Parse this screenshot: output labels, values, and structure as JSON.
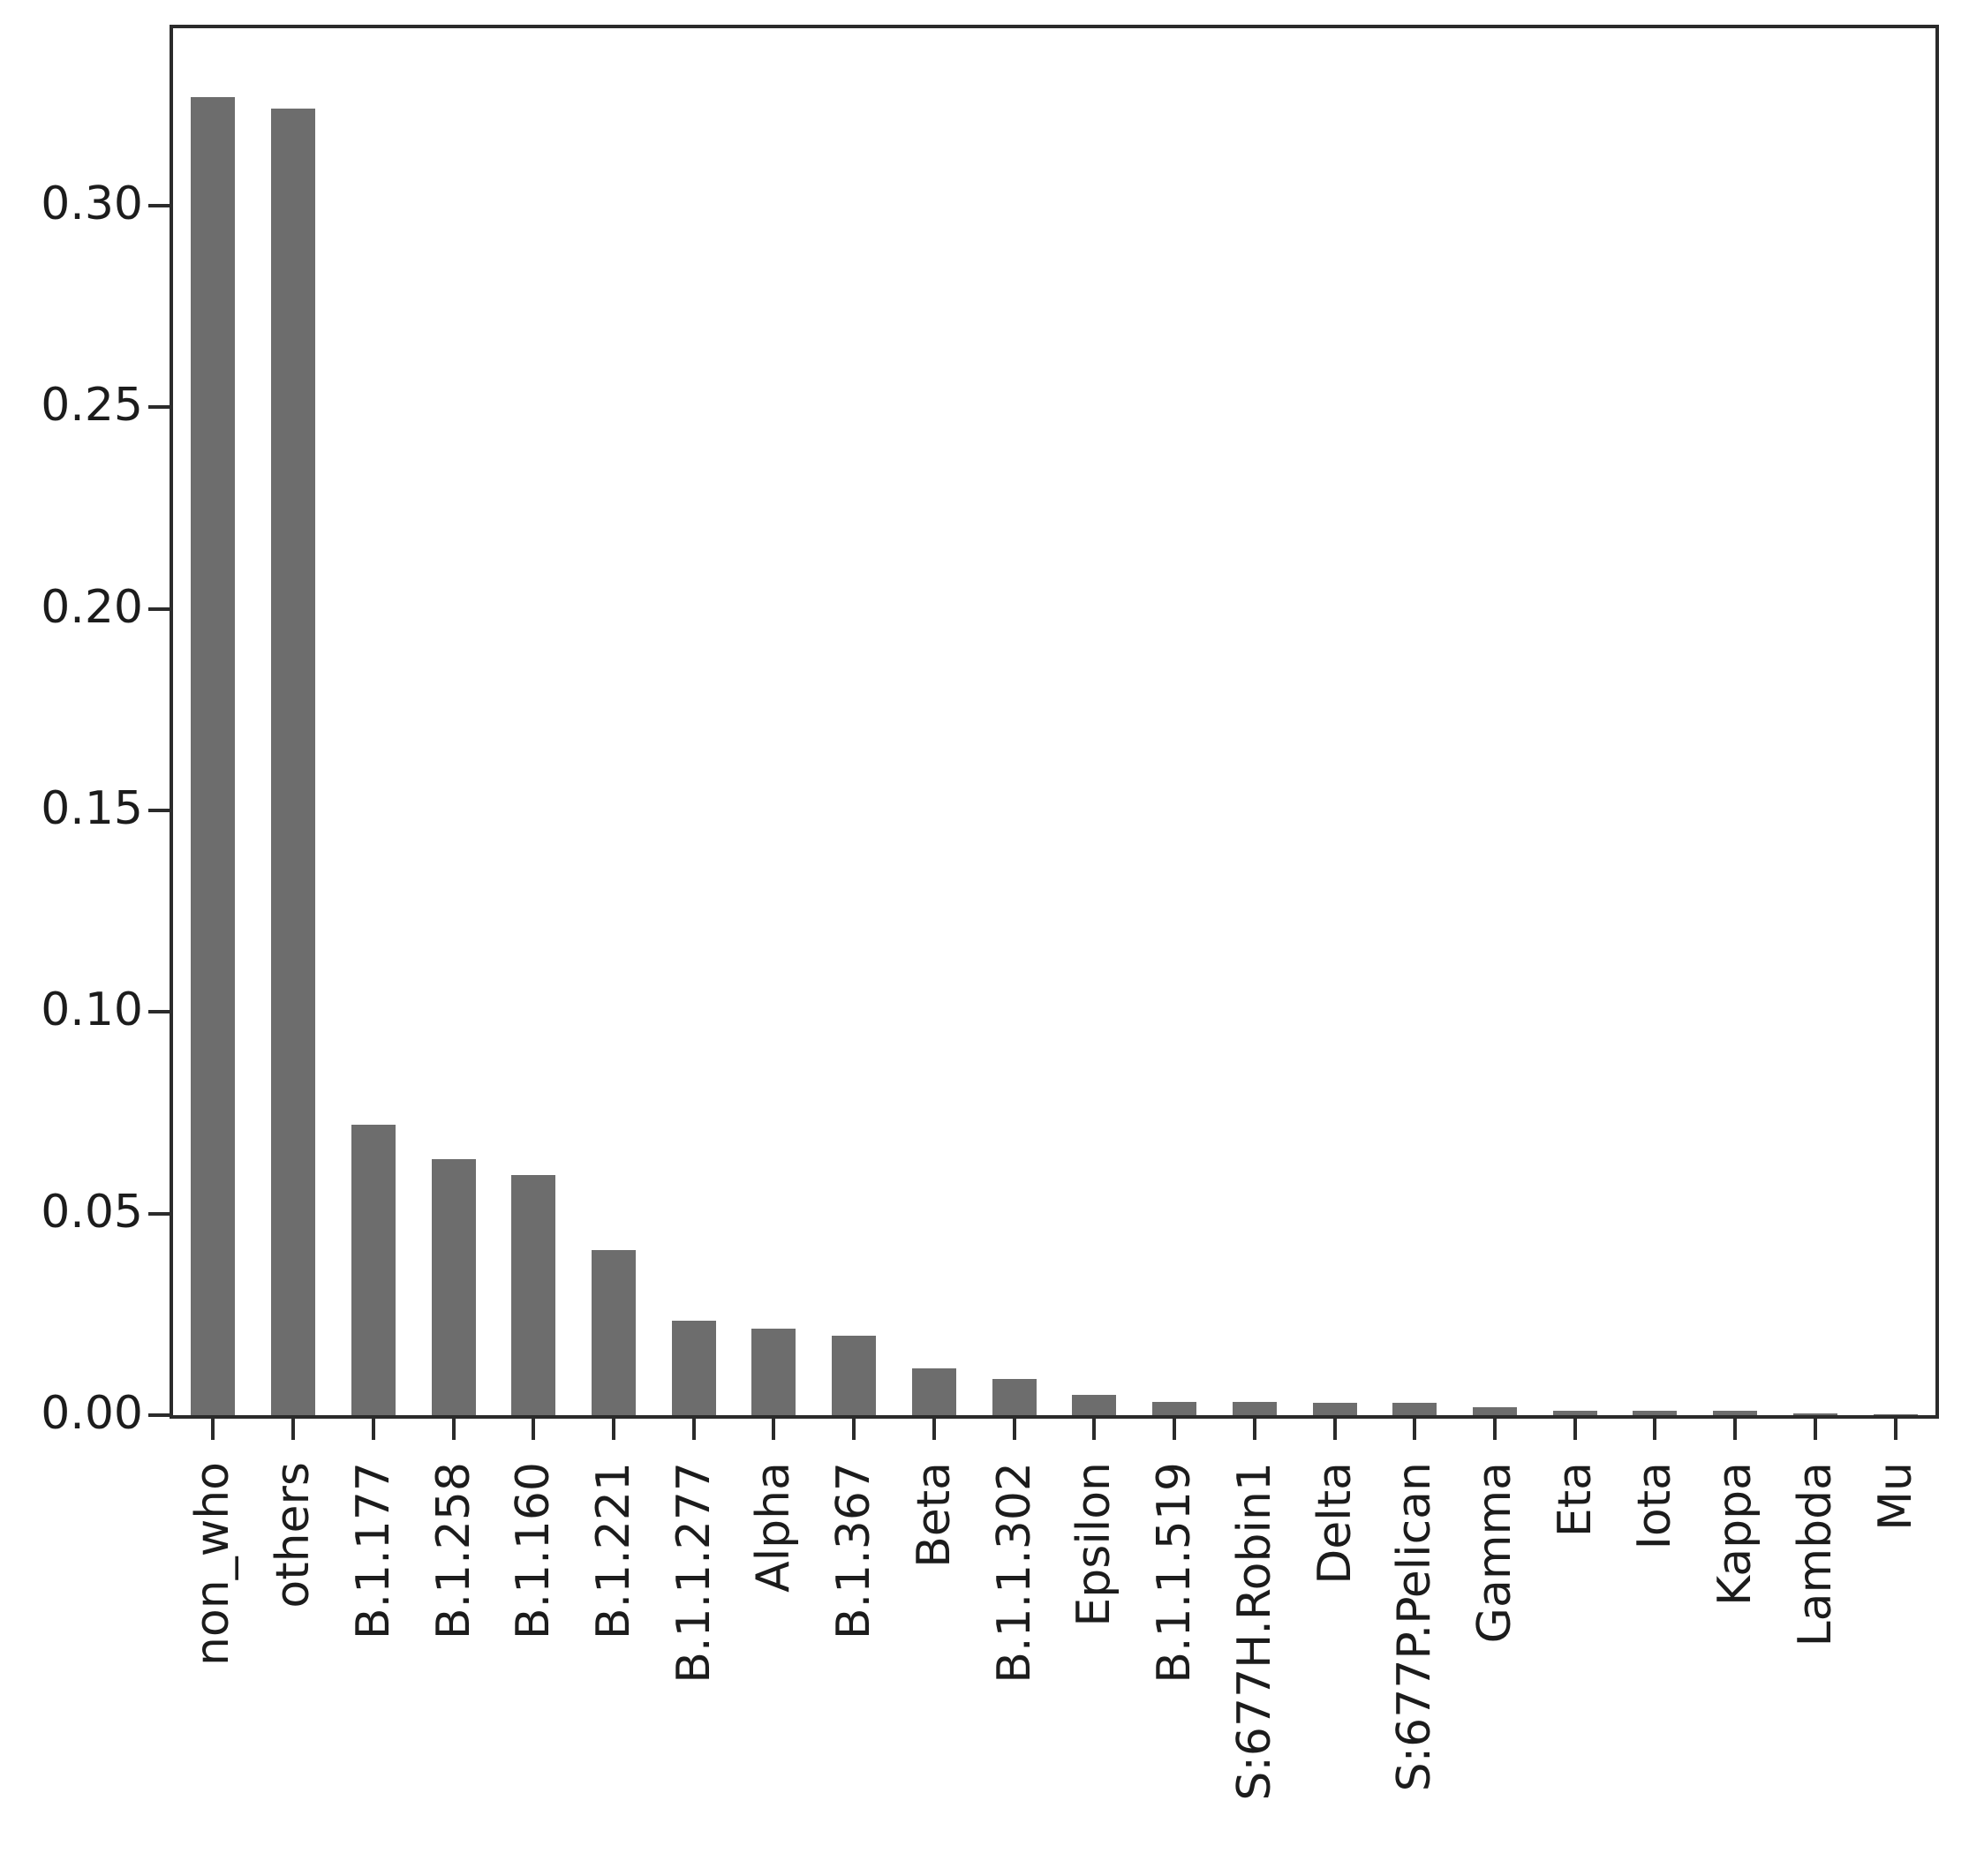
{
  "chart_data": {
    "type": "bar",
    "title": "",
    "xlabel": "",
    "ylabel": "",
    "categories": [
      "non_who",
      "others",
      "B.1.177",
      "B.1.258",
      "B.1.160",
      "B.1.221",
      "B.1.1.277",
      "Alpha",
      "B.1.367",
      "Beta",
      "B.1.1.302",
      "Epsilon",
      "B.1.1.519",
      "S:677H.Robin1",
      "Delta",
      "S:677P.Pelican",
      "Gamma",
      "Eta",
      "Iota",
      "Kappa",
      "Lambda",
      "Mu"
    ],
    "values": [
      0.327,
      0.324,
      0.072,
      0.0635,
      0.0595,
      0.041,
      0.0235,
      0.0215,
      0.0197,
      0.0115,
      0.009,
      0.005,
      0.0033,
      0.0033,
      0.003,
      0.003,
      0.002,
      0.001,
      0.001,
      0.001,
      0.0005,
      0.0003
    ],
    "ylim": [
      0,
      0.344
    ],
    "yticks": [
      0.0,
      0.05,
      0.1,
      0.15,
      0.2,
      0.25,
      0.3
    ],
    "ytick_labels": [
      "0.00",
      "0.05",
      "0.10",
      "0.15",
      "0.20",
      "0.25",
      "0.30"
    ],
    "x_tick_rotation_deg": 90,
    "grid": false,
    "legend": "none",
    "bar_color": "#6d6d6d",
    "axis_color": "#2b2b2b",
    "text_color": "#1c1c1c",
    "background_color": "#ffffff"
  }
}
